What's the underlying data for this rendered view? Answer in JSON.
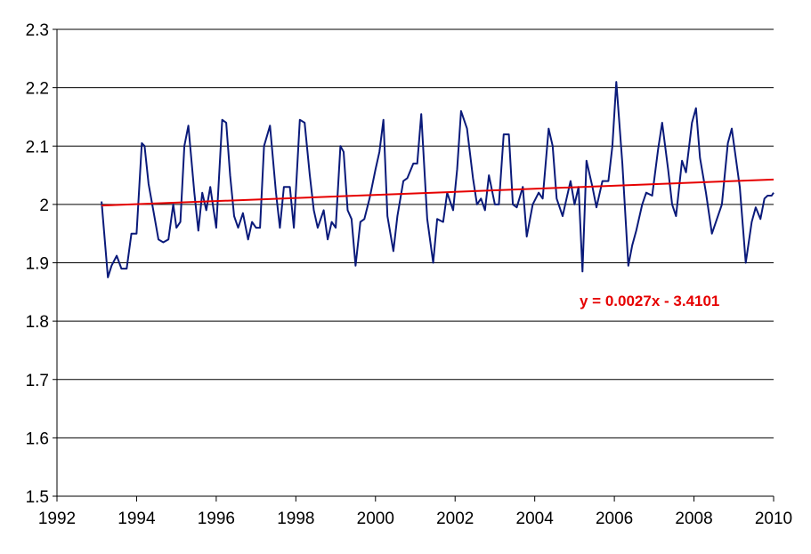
{
  "chart_data": {
    "type": "line",
    "title": "",
    "xlabel": "",
    "ylabel": "",
    "xlim": [
      1992,
      2010
    ],
    "ylim": [
      1.5,
      2.3
    ],
    "x_ticks": [
      "1992",
      "1994",
      "1996",
      "1998",
      "2000",
      "2002",
      "2004",
      "2006",
      "2008",
      "2010"
    ],
    "y_ticks": [
      "1.5",
      "1.6",
      "1.7",
      "1.8",
      "1.9",
      "2",
      "2.1",
      "2.2",
      "2.3"
    ],
    "grid": "horizontal",
    "legend": "none",
    "colors": {
      "series": "#0a1a7a",
      "trend": "#e60000",
      "grid": "#000000"
    },
    "series": [
      {
        "color": "#0a1a7a",
        "x": [
          1993.12,
          1993.28,
          1993.37,
          1993.5,
          1993.62,
          1993.75,
          1993.87,
          1994.0,
          1994.13,
          1994.2,
          1994.3,
          1994.42,
          1994.55,
          1994.67,
          1994.8,
          1994.92,
          1995.0,
          1995.1,
          1995.2,
          1995.3,
          1995.45,
          1995.55,
          1995.65,
          1995.75,
          1995.85,
          1996.0,
          1996.15,
          1996.25,
          1996.35,
          1996.45,
          1996.55,
          1996.67,
          1996.8,
          1996.9,
          1997.0,
          1997.1,
          1997.2,
          1997.35,
          1997.5,
          1997.6,
          1997.7,
          1997.85,
          1997.95,
          1998.1,
          1998.22,
          1998.35,
          1998.45,
          1998.55,
          1998.7,
          1998.8,
          1998.9,
          1999.0,
          1999.12,
          1999.2,
          1999.3,
          1999.4,
          1999.5,
          1999.62,
          1999.72,
          1999.85,
          2000.0,
          2000.1,
          2000.2,
          2000.3,
          2000.45,
          2000.55,
          2000.7,
          2000.8,
          2000.95,
          2001.05,
          2001.15,
          2001.3,
          2001.45,
          2001.55,
          2001.7,
          2001.8,
          2001.95,
          2002.05,
          2002.15,
          2002.3,
          2002.45,
          2002.55,
          2002.65,
          2002.75,
          2002.85,
          2003.0,
          2003.1,
          2003.22,
          2003.35,
          2003.45,
          2003.55,
          2003.7,
          2003.8,
          2003.95,
          2004.1,
          2004.2,
          2004.35,
          2004.45,
          2004.55,
          2004.7,
          2004.8,
          2004.9,
          2005.0,
          2005.1,
          2005.2,
          2005.3,
          2005.45,
          2005.55,
          2005.7,
          2005.85,
          2005.95,
          2006.05,
          2006.2,
          2006.35,
          2006.45,
          2006.55,
          2006.7,
          2006.8,
          2006.95,
          2007.1,
          2007.2,
          2007.35,
          2007.45,
          2007.55,
          2007.7,
          2007.8,
          2007.95,
          2008.05,
          2008.15,
          2008.3,
          2008.45,
          2008.55,
          2008.7,
          2008.85,
          2008.95,
          2009.05,
          2009.15,
          2009.3,
          2009.45,
          2009.55,
          2009.67,
          2009.77,
          2009.85,
          2009.95,
          2010.0
        ],
        "values": [
          2.005,
          1.875,
          1.895,
          1.912,
          1.89,
          1.89,
          1.95,
          1.95,
          2.105,
          2.1,
          2.035,
          1.99,
          1.94,
          1.935,
          1.94,
          2.0,
          1.96,
          1.97,
          2.1,
          2.135,
          2.02,
          1.955,
          2.02,
          1.99,
          2.03,
          1.96,
          2.145,
          2.14,
          2.05,
          1.98,
          1.96,
          1.985,
          1.94,
          1.97,
          1.96,
          1.96,
          2.1,
          2.135,
          2.02,
          1.96,
          2.03,
          2.03,
          1.96,
          2.145,
          2.14,
          2.05,
          1.99,
          1.96,
          1.99,
          1.94,
          1.97,
          1.96,
          2.1,
          2.09,
          1.99,
          1.975,
          1.895,
          1.97,
          1.975,
          2.01,
          2.06,
          2.09,
          2.145,
          1.98,
          1.92,
          1.98,
          2.04,
          2.045,
          2.07,
          2.07,
          2.155,
          1.975,
          1.9,
          1.975,
          1.97,
          2.02,
          1.99,
          2.06,
          2.16,
          2.13,
          2.045,
          2.0,
          2.01,
          1.99,
          2.05,
          2.0,
          2.0,
          2.12,
          2.12,
          2.0,
          1.995,
          2.03,
          1.945,
          2.0,
          2.02,
          2.01,
          2.13,
          2.1,
          2.01,
          1.98,
          2.01,
          2.04,
          2.0,
          2.03,
          1.885,
          2.075,
          2.03,
          1.995,
          2.04,
          2.04,
          2.1,
          2.21,
          2.07,
          1.895,
          1.93,
          1.955,
          2.0,
          2.02,
          2.015,
          2.095,
          2.14,
          2.06,
          2.0,
          1.98,
          2.075,
          2.055,
          2.14,
          2.165,
          2.08,
          2.02,
          1.95,
          1.97,
          2.0,
          2.105,
          2.13,
          2.08,
          2.03,
          1.9,
          1.97,
          1.995,
          1.975,
          2.01,
          2.015,
          2.015,
          2.02
        ]
      },
      {
        "color": "#e60000",
        "x": [
          1993.12,
          2010.0
        ],
        "values": [
          1.9982,
          2.0426
        ]
      }
    ],
    "annotation": {
      "text": "y = 0.0027x - 3.4101",
      "color": "#e60000"
    }
  }
}
